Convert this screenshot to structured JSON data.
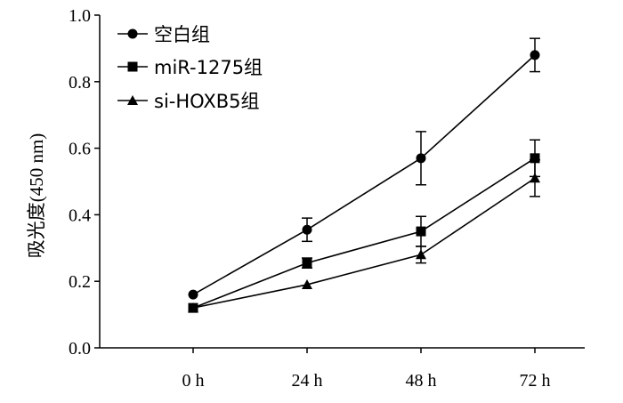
{
  "chart_data": {
    "type": "line",
    "title": "",
    "xlabel": "",
    "ylabel": "吸光度(450  nm)",
    "categories": [
      "0 h",
      "24 h",
      "48 h",
      "72 h"
    ],
    "ylim": [
      0.0,
      1.0
    ],
    "yticks": [
      "0.0",
      "0.2",
      "0.4",
      "0.6",
      "0.8",
      "1.0"
    ],
    "grid": false,
    "legend_position": "top-left",
    "series": [
      {
        "name": "空白组",
        "marker": "circle",
        "values": [
          0.16,
          0.355,
          0.57,
          0.88
        ],
        "errors": [
          0.0,
          0.035,
          0.08,
          0.05
        ]
      },
      {
        "name": "miR-1275组",
        "marker": "square",
        "values": [
          0.12,
          0.255,
          0.35,
          0.57
        ],
        "errors": [
          0.0,
          0.015,
          0.045,
          0.055
        ]
      },
      {
        "name": "si-HOXB5组",
        "marker": "triangle",
        "values": [
          0.12,
          0.19,
          0.28,
          0.51
        ],
        "errors": [
          0.0,
          0.0,
          0.025,
          0.055
        ]
      }
    ],
    "color": "#000000"
  }
}
